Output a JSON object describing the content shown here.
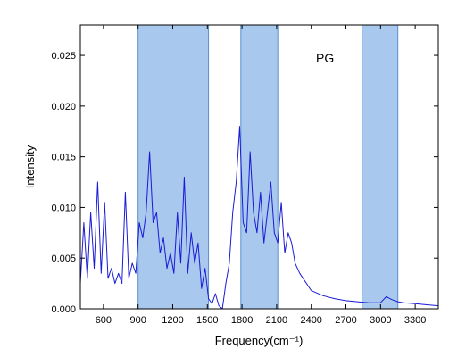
{
  "chart_data": {
    "type": "line",
    "xlabel": "Frequency(cm⁻¹)",
    "ylabel": "Intensity",
    "xlim": [
      400,
      3500
    ],
    "ylim": [
      0,
      0.028
    ],
    "x_ticks": [
      600,
      900,
      1200,
      1500,
      1800,
      2100,
      2400,
      2700,
      3000,
      3300
    ],
    "x_tick_labels": [
      "600",
      "900",
      "1200",
      "1500",
      "1800",
      "2100",
      "2400",
      "2700",
      "3000",
      "3300"
    ],
    "y_ticks": [
      0,
      0.005,
      0.01,
      0.015,
      0.02,
      0.025
    ],
    "y_tick_labels": [
      "0.000",
      "0.005",
      "0.010",
      "0.015",
      "0.020",
      "0.025"
    ],
    "annotation": "PG",
    "grid": false,
    "colors": {
      "line": "#1a1ad6",
      "band": "#a9c8ee",
      "band_edge": "#5a8fd0",
      "axis": "#000000"
    },
    "shaded_regions": [
      {
        "x_start": 900,
        "x_end": 1510
      },
      {
        "x_start": 1790,
        "x_end": 2110
      },
      {
        "x_start": 2840,
        "x_end": 3150
      }
    ],
    "series": [
      {
        "x": [
          400,
          430,
          460,
          490,
          520,
          550,
          580,
          610,
          640,
          670,
          700,
          730,
          760,
          790,
          820,
          850,
          880,
          910,
          940,
          970,
          1000,
          1030,
          1060,
          1090,
          1120,
          1150,
          1180,
          1210,
          1240,
          1270,
          1300,
          1330,
          1360,
          1390,
          1420,
          1450,
          1480,
          1510,
          1540,
          1570,
          1600,
          1630,
          1660,
          1690,
          1720,
          1750,
          1780,
          1810,
          1840,
          1870,
          1900,
          1930,
          1960,
          1990,
          2020,
          2050,
          2080,
          2110,
          2140,
          2170,
          2200,
          2230,
          2260,
          2300,
          2400,
          2500,
          2600,
          2700,
          2800,
          2900,
          3000,
          3050,
          3080,
          3100,
          3150,
          3200,
          3300,
          3400,
          3500
        ],
        "values": [
          0.0025,
          0.0085,
          0.003,
          0.0095,
          0.004,
          0.0125,
          0.0035,
          0.0105,
          0.003,
          0.004,
          0.0025,
          0.0035,
          0.0025,
          0.0115,
          0.003,
          0.0045,
          0.0035,
          0.0085,
          0.007,
          0.0095,
          0.0155,
          0.0085,
          0.0095,
          0.0055,
          0.007,
          0.004,
          0.0055,
          0.0035,
          0.0095,
          0.0045,
          0.013,
          0.0035,
          0.0075,
          0.0045,
          0.0065,
          0.002,
          0.004,
          0.001,
          0.0005,
          0.0015,
          0.0003,
          0.0,
          0.0025,
          0.0045,
          0.0095,
          0.0125,
          0.018,
          0.0085,
          0.0075,
          0.0155,
          0.0095,
          0.0075,
          0.0115,
          0.0065,
          0.0095,
          0.0125,
          0.0075,
          0.0065,
          0.0105,
          0.0055,
          0.0075,
          0.0065,
          0.0045,
          0.0035,
          0.0018,
          0.0013,
          0.001,
          0.0008,
          0.0007,
          0.0006,
          0.0006,
          0.0012,
          0.001,
          0.0009,
          0.0007,
          0.0006,
          0.0005,
          0.0004,
          0.0003
        ]
      }
    ]
  }
}
